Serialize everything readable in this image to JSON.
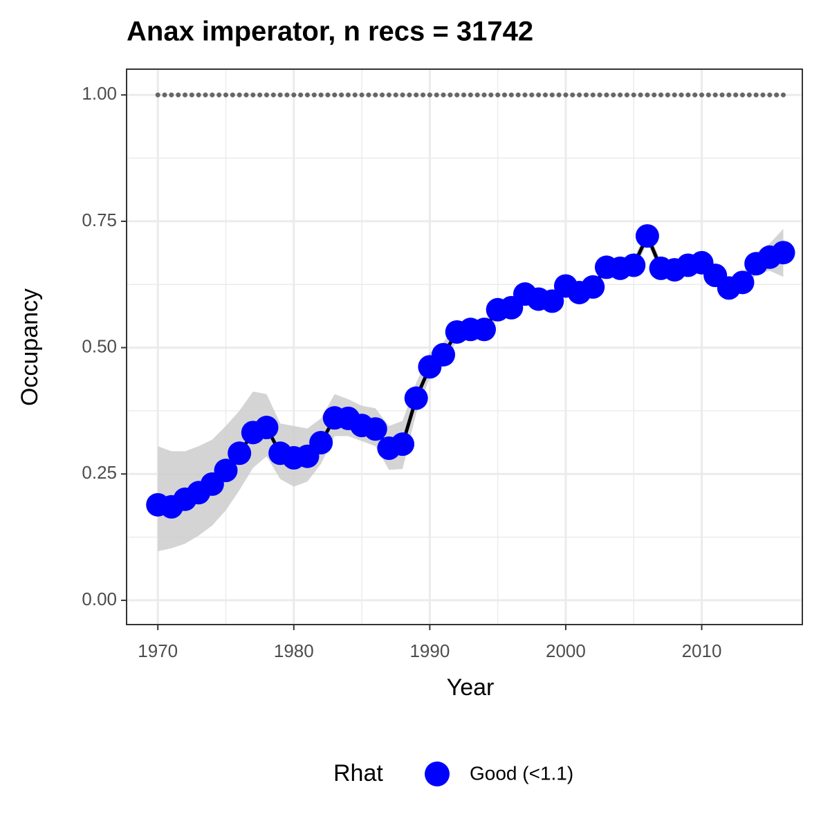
{
  "chart_data": {
    "type": "line",
    "title": "Anax imperator, n recs = 31742",
    "x_label": "Year",
    "y_label": "Occupancy",
    "x": [
      1970,
      1971,
      1972,
      1973,
      1974,
      1975,
      1976,
      1977,
      1978,
      1979,
      1980,
      1981,
      1982,
      1983,
      1984,
      1985,
      1986,
      1987,
      1988,
      1989,
      1990,
      1991,
      1992,
      1993,
      1994,
      1995,
      1996,
      1997,
      1998,
      1999,
      2000,
      2001,
      2002,
      2003,
      2004,
      2005,
      2006,
      2007,
      2008,
      2009,
      2010,
      2011,
      2012,
      2013,
      2014,
      2015,
      2016
    ],
    "series": [
      {
        "name": "Good (<1.1)",
        "color": "#0000ff",
        "line_color": "#000000",
        "ribbon_color": "#cccccc",
        "values": [
          0.189,
          0.185,
          0.2,
          0.213,
          0.23,
          0.257,
          0.291,
          0.332,
          0.342,
          0.291,
          0.282,
          0.285,
          0.312,
          0.361,
          0.36,
          0.346,
          0.339,
          0.301,
          0.309,
          0.4,
          0.462,
          0.486,
          0.531,
          0.536,
          0.536,
          0.575,
          0.579,
          0.606,
          0.596,
          0.592,
          0.622,
          0.609,
          0.62,
          0.659,
          0.657,
          0.663,
          0.721,
          0.657,
          0.654,
          0.663,
          0.668,
          0.643,
          0.618,
          0.629,
          0.666,
          0.679,
          0.688
        ],
        "lower": [
          0.097,
          0.103,
          0.112,
          0.128,
          0.148,
          0.178,
          0.218,
          0.262,
          0.285,
          0.24,
          0.225,
          0.235,
          0.27,
          0.325,
          0.325,
          0.315,
          0.305,
          0.258,
          0.26,
          0.37,
          0.44,
          0.465,
          0.515,
          0.52,
          0.52,
          0.56,
          0.565,
          0.593,
          0.583,
          0.58,
          0.61,
          0.597,
          0.607,
          0.646,
          0.644,
          0.65,
          0.707,
          0.644,
          0.64,
          0.65,
          0.654,
          0.628,
          0.602,
          0.612,
          0.645,
          0.652,
          0.64
        ],
        "upper": [
          0.305,
          0.295,
          0.295,
          0.305,
          0.318,
          0.345,
          0.375,
          0.413,
          0.408,
          0.35,
          0.345,
          0.34,
          0.36,
          0.408,
          0.398,
          0.385,
          0.38,
          0.345,
          0.355,
          0.43,
          0.49,
          0.51,
          0.548,
          0.552,
          0.552,
          0.59,
          0.594,
          0.62,
          0.61,
          0.605,
          0.635,
          0.622,
          0.633,
          0.672,
          0.67,
          0.676,
          0.735,
          0.67,
          0.668,
          0.677,
          0.682,
          0.658,
          0.634,
          0.646,
          0.688,
          0.706,
          0.735
        ]
      }
    ],
    "reference_line": {
      "value": 1,
      "color": "#666666"
    },
    "xlim": [
      1967.7,
      2017.4
    ],
    "ylim": [
      -0.048,
      1.051
    ],
    "xticks": [
      1970,
      1980,
      1990,
      2000,
      2010
    ],
    "yticks": [
      {
        "value": 0,
        "label": "0.00"
      },
      {
        "value": 0.25,
        "label": "0.25"
      },
      {
        "value": 0.5,
        "label": "0.50"
      },
      {
        "value": 0.75,
        "label": "0.75"
      },
      {
        "value": 1,
        "label": "1.00"
      }
    ],
    "grid": true,
    "legend_title": "Rhat",
    "legend_position": "bottom"
  }
}
